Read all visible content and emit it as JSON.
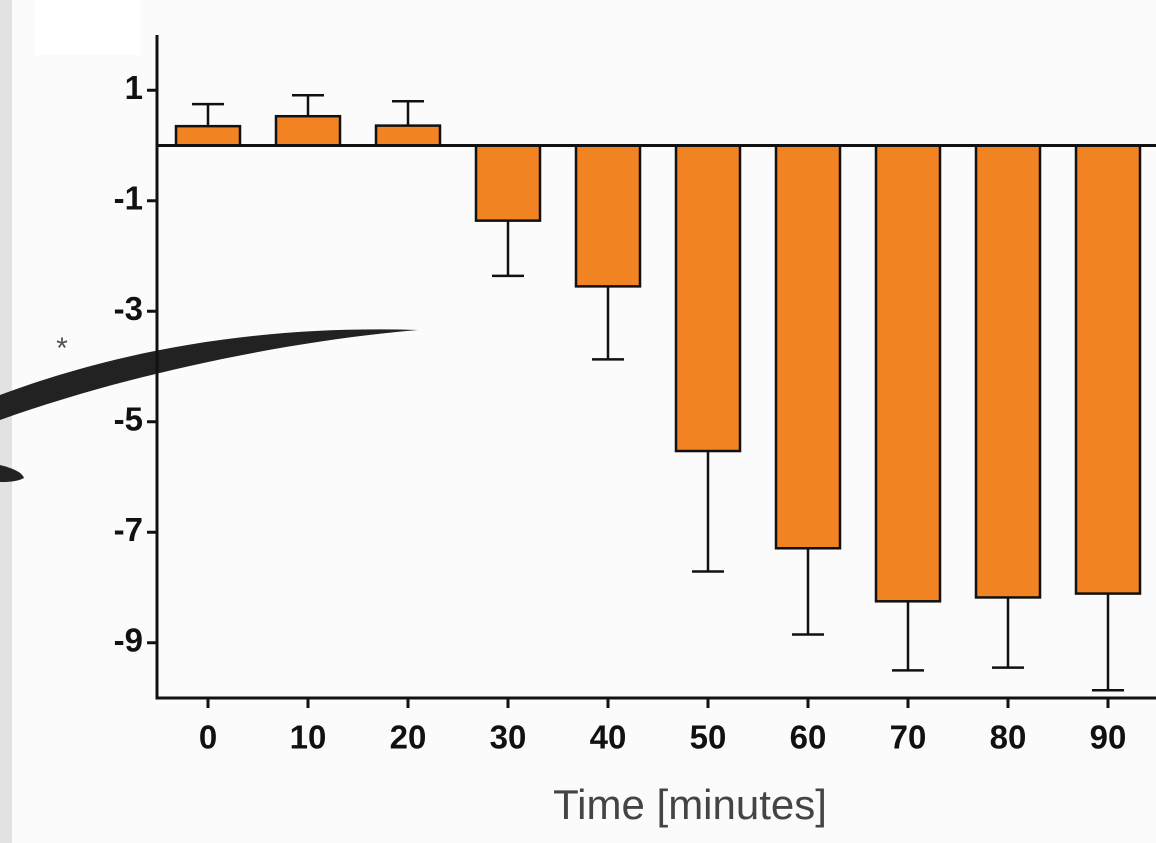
{
  "chart_data": {
    "type": "bar",
    "x_label": "Time [minutes]",
    "annotation": "*",
    "categories": [
      "0",
      "10",
      "20",
      "30",
      "40",
      "50",
      "60",
      "70",
      "80",
      "90"
    ],
    "values": [
      0.35,
      0.53,
      0.36,
      -1.36,
      -2.55,
      -5.53,
      -7.29,
      -8.25,
      -8.18,
      -8.11
    ],
    "errors": [
      0.4,
      0.38,
      0.44,
      1.0,
      1.32,
      2.18,
      1.56,
      1.25,
      1.27,
      1.75
    ],
    "color": "#f28322",
    "ylim": [
      -10,
      2
    ],
    "yticks": [
      1,
      -1,
      -3,
      -5,
      -7,
      -9
    ],
    "grid": false
  }
}
